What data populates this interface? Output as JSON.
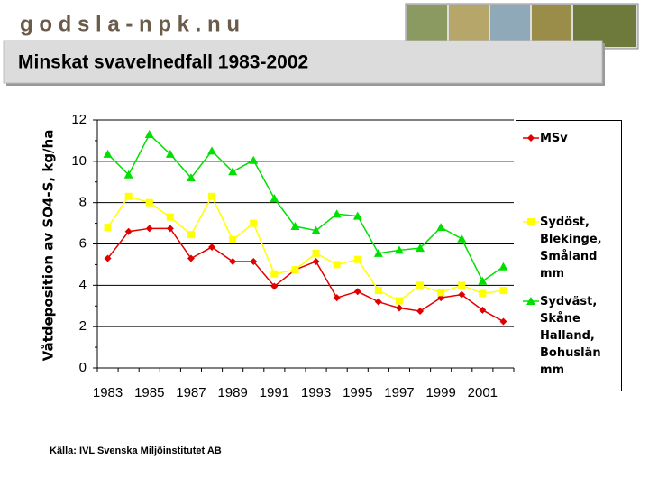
{
  "header": {
    "logo": "g o d s l a - n p k . n u",
    "title": "Minskat svavelnedfall 1983-2002"
  },
  "source": "Källa: IVL Svenska Miljöinstitutet AB",
  "chart_data": {
    "type": "line",
    "y_label": "Våtdeposition av SO4-S, kg/ha",
    "categories": [
      "1983",
      null,
      "1985",
      null,
      "1987",
      null,
      "1989",
      null,
      "1991",
      null,
      "1993",
      null,
      "1995",
      null,
      "1997",
      null,
      "1999",
      null,
      "2001",
      null
    ],
    "ylim": [
      0,
      12
    ],
    "yticks": [
      0,
      2,
      4,
      6,
      8,
      10,
      12
    ],
    "grid": true,
    "series": [
      {
        "name": "MSv",
        "color": "#e00000",
        "marker": "diamond",
        "values": [
          5.3,
          6.6,
          6.75,
          6.75,
          5.3,
          5.85,
          5.15,
          5.15,
          3.95,
          4.75,
          5.15,
          3.4,
          3.7,
          3.2,
          2.9,
          2.75,
          3.4,
          3.55,
          2.8,
          2.25
        ]
      },
      {
        "name": "Sydöst, Blekinge, Småland mm",
        "color": "#ffff00",
        "marker": "square",
        "values": [
          6.8,
          8.3,
          8.0,
          7.3,
          6.45,
          8.3,
          6.2,
          7.0,
          4.55,
          4.75,
          5.55,
          5.0,
          5.25,
          3.75,
          3.25,
          4.0,
          3.65,
          4.0,
          3.6,
          3.75
        ]
      },
      {
        "name": "Sydväst, Skåne Halland, Bohuslän mm",
        "color": "#00e000",
        "marker": "triangle",
        "values": [
          10.35,
          9.35,
          11.3,
          10.35,
          9.2,
          10.5,
          9.5,
          10.05,
          8.2,
          6.85,
          6.65,
          7.45,
          7.35,
          5.55,
          5.7,
          5.8,
          6.8,
          6.25,
          4.2,
          4.9
        ]
      }
    ]
  }
}
